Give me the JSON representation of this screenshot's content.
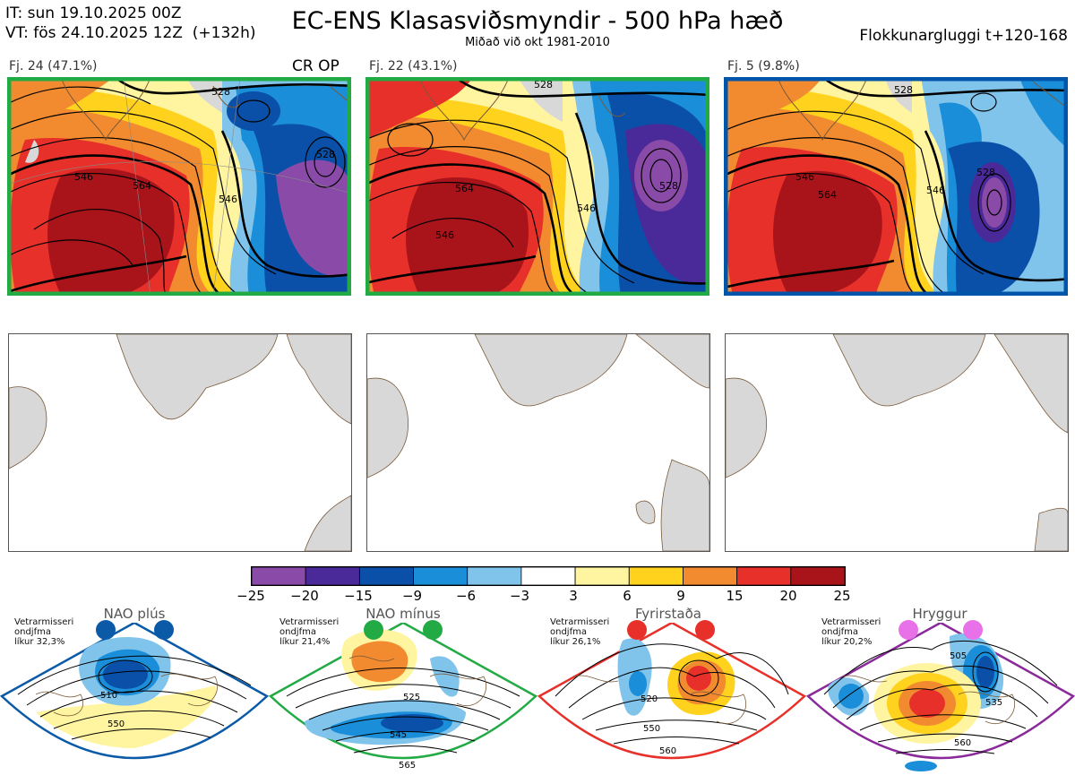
{
  "header": {
    "it_line": "IT: sun 19.10.2025 00Z",
    "vt_line": "VT: fös 24.10.2025 12Z  (+132h)",
    "title": "EC-ENS Klasasviðsmyndir - 500 hPa hæð",
    "subtitle": "Miðað við okt 1981-2010",
    "window": "Flokkunargluggi t+120-168"
  },
  "clusters": [
    {
      "label": "Fj. 24 (47.1%)",
      "tag": "CR OP",
      "border": "#22aa44",
      "contours": [
        "546",
        "528",
        "546",
        "564",
        "528"
      ]
    },
    {
      "label": "Fj. 22 (43.1%)",
      "tag": "",
      "border": "#22aa44",
      "contours": [
        "546",
        "528",
        "546",
        "564",
        "528"
      ]
    },
    {
      "label": "Fj. 5 (9.8%)",
      "tag": "",
      "border": "#0055aa",
      "contours": [
        "546",
        "528",
        "546",
        "564",
        "528"
      ]
    }
  ],
  "colorbar": {
    "ticks": [
      "−25",
      "−20",
      "−15",
      "−9",
      "−6",
      "−3",
      "3",
      "6",
      "9",
      "15",
      "20",
      "25"
    ],
    "colors": [
      "#8a4aa8",
      "#4a2a98",
      "#0a50a8",
      "#1a8ed8",
      "#80c4ec",
      "#ffffff",
      "#fff4a0",
      "#ffd21e",
      "#f28b30",
      "#e8302a",
      "#a8141a"
    ]
  },
  "regimes": [
    {
      "name": "NAO plús",
      "note": "Vetrarmisseri\nondjfma\nlíkur 32,3%",
      "color": "#0a5aa8",
      "contours": [
        "510",
        "550"
      ]
    },
    {
      "name": "NAO mínus",
      "note": "Vetrarmisseri\nondjfma\nlíkur 21,4%",
      "color": "#22aa44",
      "contours": [
        "525",
        "545",
        "565"
      ]
    },
    {
      "name": "Fyrirstaða",
      "note": "Vetrarmisseri\nondjfma\nlíkur 26,1%",
      "color": "#e8302a",
      "contours": [
        "520",
        "550",
        "560"
      ]
    },
    {
      "name": "Hryggur",
      "note": "Vetrarmisseri\nondjfma\nlíkur 20,2%",
      "color": "#e870e8",
      "contours": [
        "505",
        "535",
        "560"
      ]
    }
  ]
}
